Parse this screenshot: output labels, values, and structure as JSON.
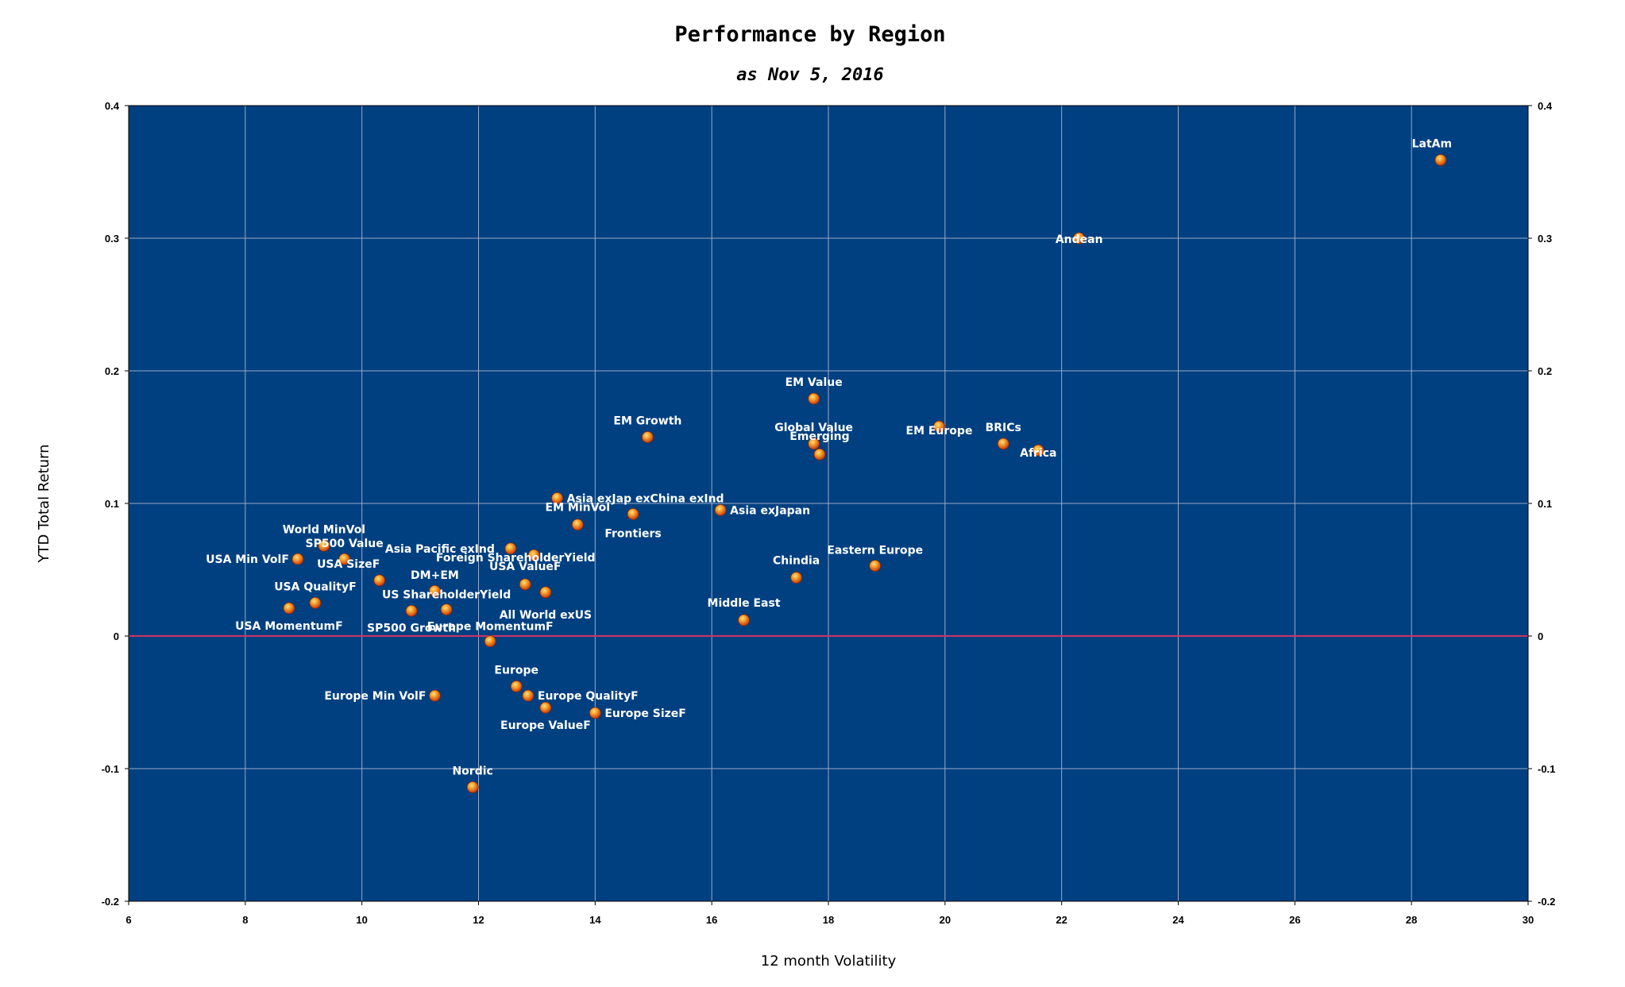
{
  "chart_data": {
    "type": "scatter",
    "title": "Performance by Region",
    "subtitle": "as Nov 5, 2016",
    "xlabel": "12 month Volatility",
    "ylabel": "YTD Total Return",
    "xlim": [
      6,
      30
    ],
    "ylim": [
      -0.2,
      0.4
    ],
    "x_ticks": [
      "6",
      "8",
      "10",
      "12",
      "14",
      "16",
      "18",
      "20",
      "22",
      "24",
      "26",
      "28",
      "30"
    ],
    "y_ticks": [
      "-0.2",
      "-0.1",
      "0",
      "0.1",
      "0.2",
      "0.3",
      "0.4"
    ],
    "grid": true,
    "secondary_y_axis": true,
    "zero_line": true,
    "colors": {
      "plot_background": "#004080",
      "grid": "#9aa9c7",
      "zero_line": "#cc3366",
      "marker": "#e8641a",
      "marker_highlight": "#ffcf60",
      "label": "#ffffff"
    },
    "points": [
      {
        "label": "LatAm",
        "x": 28.5,
        "y": 0.359
      },
      {
        "label": "Andean",
        "x": 22.3,
        "y": 0.3
      },
      {
        "label": "EM Value",
        "x": 17.75,
        "y": 0.179
      },
      {
        "label": "EM Growth",
        "x": 14.9,
        "y": 0.15
      },
      {
        "label": "EM Europe",
        "x": 19.9,
        "y": 0.158
      },
      {
        "label": "BRICs",
        "x": 21.0,
        "y": 0.145
      },
      {
        "label": "Africa",
        "x": 21.6,
        "y": 0.14
      },
      {
        "label": "Global Value",
        "x": 17.75,
        "y": 0.145
      },
      {
        "label": "Emerging",
        "x": 17.85,
        "y": 0.137
      },
      {
        "label": "Asia exJap exChina exInd",
        "x": 13.35,
        "y": 0.104
      },
      {
        "label": "EM MinVol",
        "x": 13.7,
        "y": 0.084
      },
      {
        "label": "Frontiers",
        "x": 14.65,
        "y": 0.092
      },
      {
        "label": "Asia exJapan",
        "x": 16.15,
        "y": 0.095
      },
      {
        "label": "Eastern Europe",
        "x": 18.8,
        "y": 0.053
      },
      {
        "label": "Chindia",
        "x": 17.45,
        "y": 0.044
      },
      {
        "label": "Middle East",
        "x": 16.55,
        "y": 0.012
      },
      {
        "label": "World MinVol",
        "x": 9.35,
        "y": 0.068
      },
      {
        "label": "SP500 Value",
        "x": 9.7,
        "y": 0.058
      },
      {
        "label": "USA Min VolF",
        "x": 8.9,
        "y": 0.058
      },
      {
        "label": "USA SizeF",
        "x": 10.3,
        "y": 0.042
      },
      {
        "label": "USA QualityF",
        "x": 9.2,
        "y": 0.025
      },
      {
        "label": "USA MomentumF",
        "x": 8.75,
        "y": 0.021
      },
      {
        "label": "DM+EM",
        "x": 11.25,
        "y": 0.034
      },
      {
        "label": "SP500 Growth",
        "x": 10.85,
        "y": 0.019
      },
      {
        "label": "US ShareholderYield",
        "x": 11.45,
        "y": 0.02
      },
      {
        "label": "Asia Pacific exInd",
        "x": 12.55,
        "y": 0.066
      },
      {
        "label": "Foreign ShareholderYield",
        "x": 12.95,
        "y": 0.061
      },
      {
        "label": "USA ValueF",
        "x": 12.8,
        "y": 0.039
      },
      {
        "label": "All World exUS",
        "x": 13.15,
        "y": 0.033
      },
      {
        "label": "Europe MomentumF",
        "x": 12.2,
        "y": -0.004
      },
      {
        "label": "Europe",
        "x": 12.65,
        "y": -0.038
      },
      {
        "label": "Europe QualityF",
        "x": 12.85,
        "y": -0.045
      },
      {
        "label": "Europe ValueF",
        "x": 13.15,
        "y": -0.054
      },
      {
        "label": "Europe SizeF",
        "x": 14.0,
        "y": -0.058
      },
      {
        "label": "Europe Min VolF",
        "x": 11.25,
        "y": -0.045
      },
      {
        "label": "Nordic",
        "x": 11.9,
        "y": -0.114
      }
    ]
  }
}
